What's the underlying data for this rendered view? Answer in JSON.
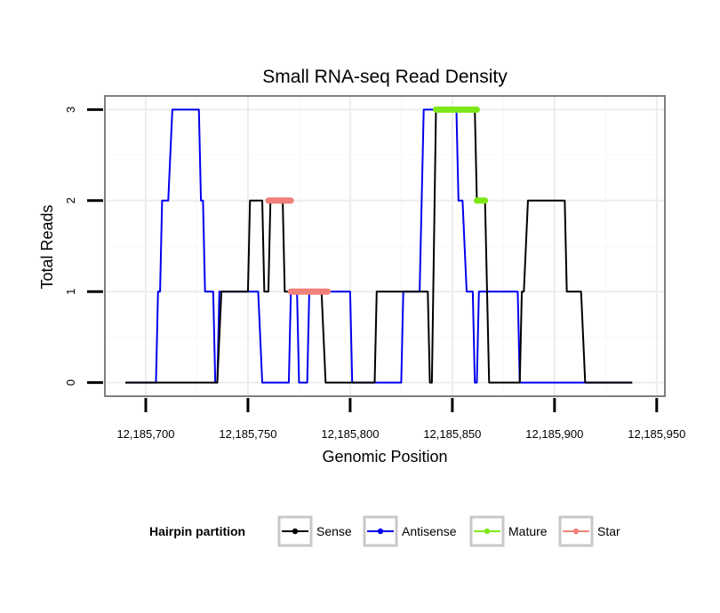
{
  "chart_data": {
    "type": "line",
    "title": "Small RNA-seq Read Density",
    "xlabel": "Genomic Position",
    "ylabel": "Total Reads",
    "xlim": [
      12185680,
      12185954
    ],
    "ylim": [
      -0.15,
      3.15
    ],
    "x_ticks": [
      12185700,
      12185750,
      12185800,
      12185850,
      12185900,
      12185950
    ],
    "x_tick_labels": [
      "12,185,700",
      "12,185,750",
      "12,185,800",
      "12,185,850",
      "12,185,900",
      "12,185,950"
    ],
    "y_ticks": [
      0,
      1,
      2,
      3
    ],
    "y_tick_labels": [
      "0",
      "1",
      "2",
      "3"
    ],
    "grid": true,
    "legend": {
      "title": "Hairpin partition",
      "position": "bottom",
      "entries": [
        "Sense",
        "Antisense",
        "Mature",
        "Star"
      ]
    },
    "series": [
      {
        "name": "Antisense",
        "color": "#0000ee",
        "width": 2,
        "points": [
          [
            12185690,
            0
          ],
          [
            12185705,
            0
          ],
          [
            12185706,
            1
          ],
          [
            12185707,
            1
          ],
          [
            12185708,
            2
          ],
          [
            12185711,
            2
          ],
          [
            12185713,
            3
          ],
          [
            12185726,
            3
          ],
          [
            12185727,
            2
          ],
          [
            12185728,
            2
          ],
          [
            12185729,
            1
          ],
          [
            12185733,
            1
          ],
          [
            12185734,
            0
          ],
          [
            12185735,
            0
          ],
          [
            12185736,
            1
          ],
          [
            12185755,
            1
          ],
          [
            12185757,
            0
          ],
          [
            12185770,
            0
          ],
          [
            12185771,
            1
          ],
          [
            12185774,
            1
          ],
          [
            12185775,
            0
          ],
          [
            12185779,
            0
          ],
          [
            12185780,
            1
          ],
          [
            12185800,
            1
          ],
          [
            12185801,
            0
          ],
          [
            12185825,
            0
          ],
          [
            12185826,
            1
          ],
          [
            12185834,
            1
          ],
          [
            12185836,
            3
          ],
          [
            12185852,
            3
          ],
          [
            12185853,
            2
          ],
          [
            12185855,
            2
          ],
          [
            12185857,
            1
          ],
          [
            12185860,
            1
          ],
          [
            12185861,
            0
          ],
          [
            12185862,
            0
          ],
          [
            12185863,
            1
          ],
          [
            12185882,
            1
          ],
          [
            12185883,
            0
          ],
          [
            12185914,
            0
          ],
          [
            12185938,
            0
          ]
        ]
      },
      {
        "name": "Sense",
        "color": "#000000",
        "width": 2,
        "points": [
          [
            12185690,
            0
          ],
          [
            12185735,
            0
          ],
          [
            12185737,
            1
          ],
          [
            12185750,
            1
          ],
          [
            12185751,
            2
          ],
          [
            12185757,
            2
          ],
          [
            12185758,
            1
          ],
          [
            12185760,
            1
          ],
          [
            12185761,
            2
          ],
          [
            12185767,
            2
          ],
          [
            12185768,
            1
          ],
          [
            12185786,
            1
          ],
          [
            12185788,
            0
          ],
          [
            12185812,
            0
          ],
          [
            12185813,
            1
          ],
          [
            12185838,
            1
          ],
          [
            12185839,
            0
          ],
          [
            12185840,
            0
          ],
          [
            12185842,
            3
          ],
          [
            12185861,
            3
          ],
          [
            12185862,
            2
          ],
          [
            12185866,
            2
          ],
          [
            12185868,
            0
          ],
          [
            12185883,
            0
          ],
          [
            12185884,
            1
          ],
          [
            12185885,
            1
          ],
          [
            12185887,
            2
          ],
          [
            12185905,
            2
          ],
          [
            12185906,
            1
          ],
          [
            12185913,
            1
          ],
          [
            12185915,
            0
          ],
          [
            12185938,
            0
          ]
        ]
      },
      {
        "name": "Mature",
        "color": "#7ee817",
        "width": 7,
        "segments": [
          [
            [
              12185842,
              3
            ],
            [
              12185862,
              3
            ]
          ],
          [
            [
              12185862,
              2
            ],
            [
              12185866,
              2
            ]
          ]
        ]
      },
      {
        "name": "Star",
        "color": "#f08079",
        "width": 7,
        "segments": [
          [
            [
              12185760,
              2
            ],
            [
              12185771,
              2
            ]
          ],
          [
            [
              12185771,
              1
            ],
            [
              12185789,
              1
            ]
          ]
        ]
      }
    ]
  }
}
